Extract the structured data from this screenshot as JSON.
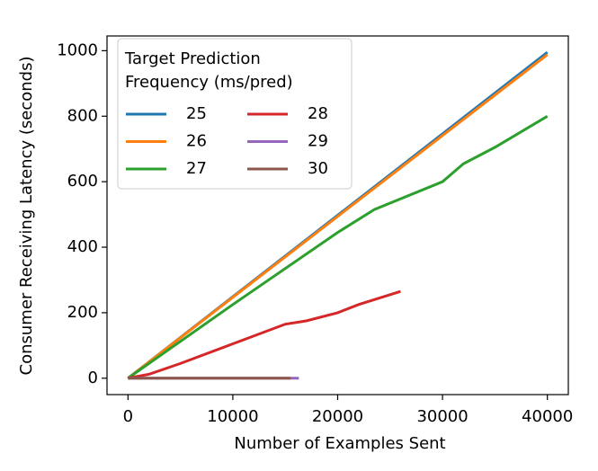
{
  "chart_data": {
    "type": "line",
    "xlabel": "Number of Examples Sent",
    "ylabel": "Consumer Receiving Latency (seconds)",
    "xlim": [
      -2000,
      42000
    ],
    "xticks": [
      0,
      10000,
      20000,
      30000,
      40000
    ],
    "ylim": [
      -50,
      1045
    ],
    "yticks": [
      0,
      200,
      400,
      600,
      800,
      1000
    ],
    "legend_title": [
      "Target Prediction",
      "Frequency (ms/pred)"
    ],
    "legend_loc": "upper left",
    "legend_columns": 2,
    "series": [
      {
        "name": "25",
        "color": "#1f77b4",
        "x": [
          0,
          40000
        ],
        "values": [
          0,
          995
        ]
      },
      {
        "name": "26",
        "color": "#ff7f0e",
        "x": [
          0,
          40000
        ],
        "values": [
          0,
          988
        ]
      },
      {
        "name": "27",
        "color": "#2ca02c",
        "x": [
          0,
          10000,
          20000,
          23500,
          30000,
          32000,
          35000,
          40000
        ],
        "values": [
          0,
          225,
          445,
          515,
          600,
          655,
          705,
          800
        ]
      },
      {
        "name": "28",
        "color": "#d62728",
        "x": [
          0,
          2000,
          5000,
          10000,
          15000,
          17000,
          20000,
          22000,
          26000
        ],
        "values": [
          0,
          12,
          45,
          105,
          165,
          175,
          200,
          225,
          265
        ]
      },
      {
        "name": "29",
        "color": "#9467bd",
        "x": [
          0,
          16300
        ],
        "values": [
          0,
          0
        ]
      },
      {
        "name": "30",
        "color": "#8c564b",
        "x": [
          0,
          15500
        ],
        "values": [
          0,
          0
        ]
      }
    ]
  }
}
